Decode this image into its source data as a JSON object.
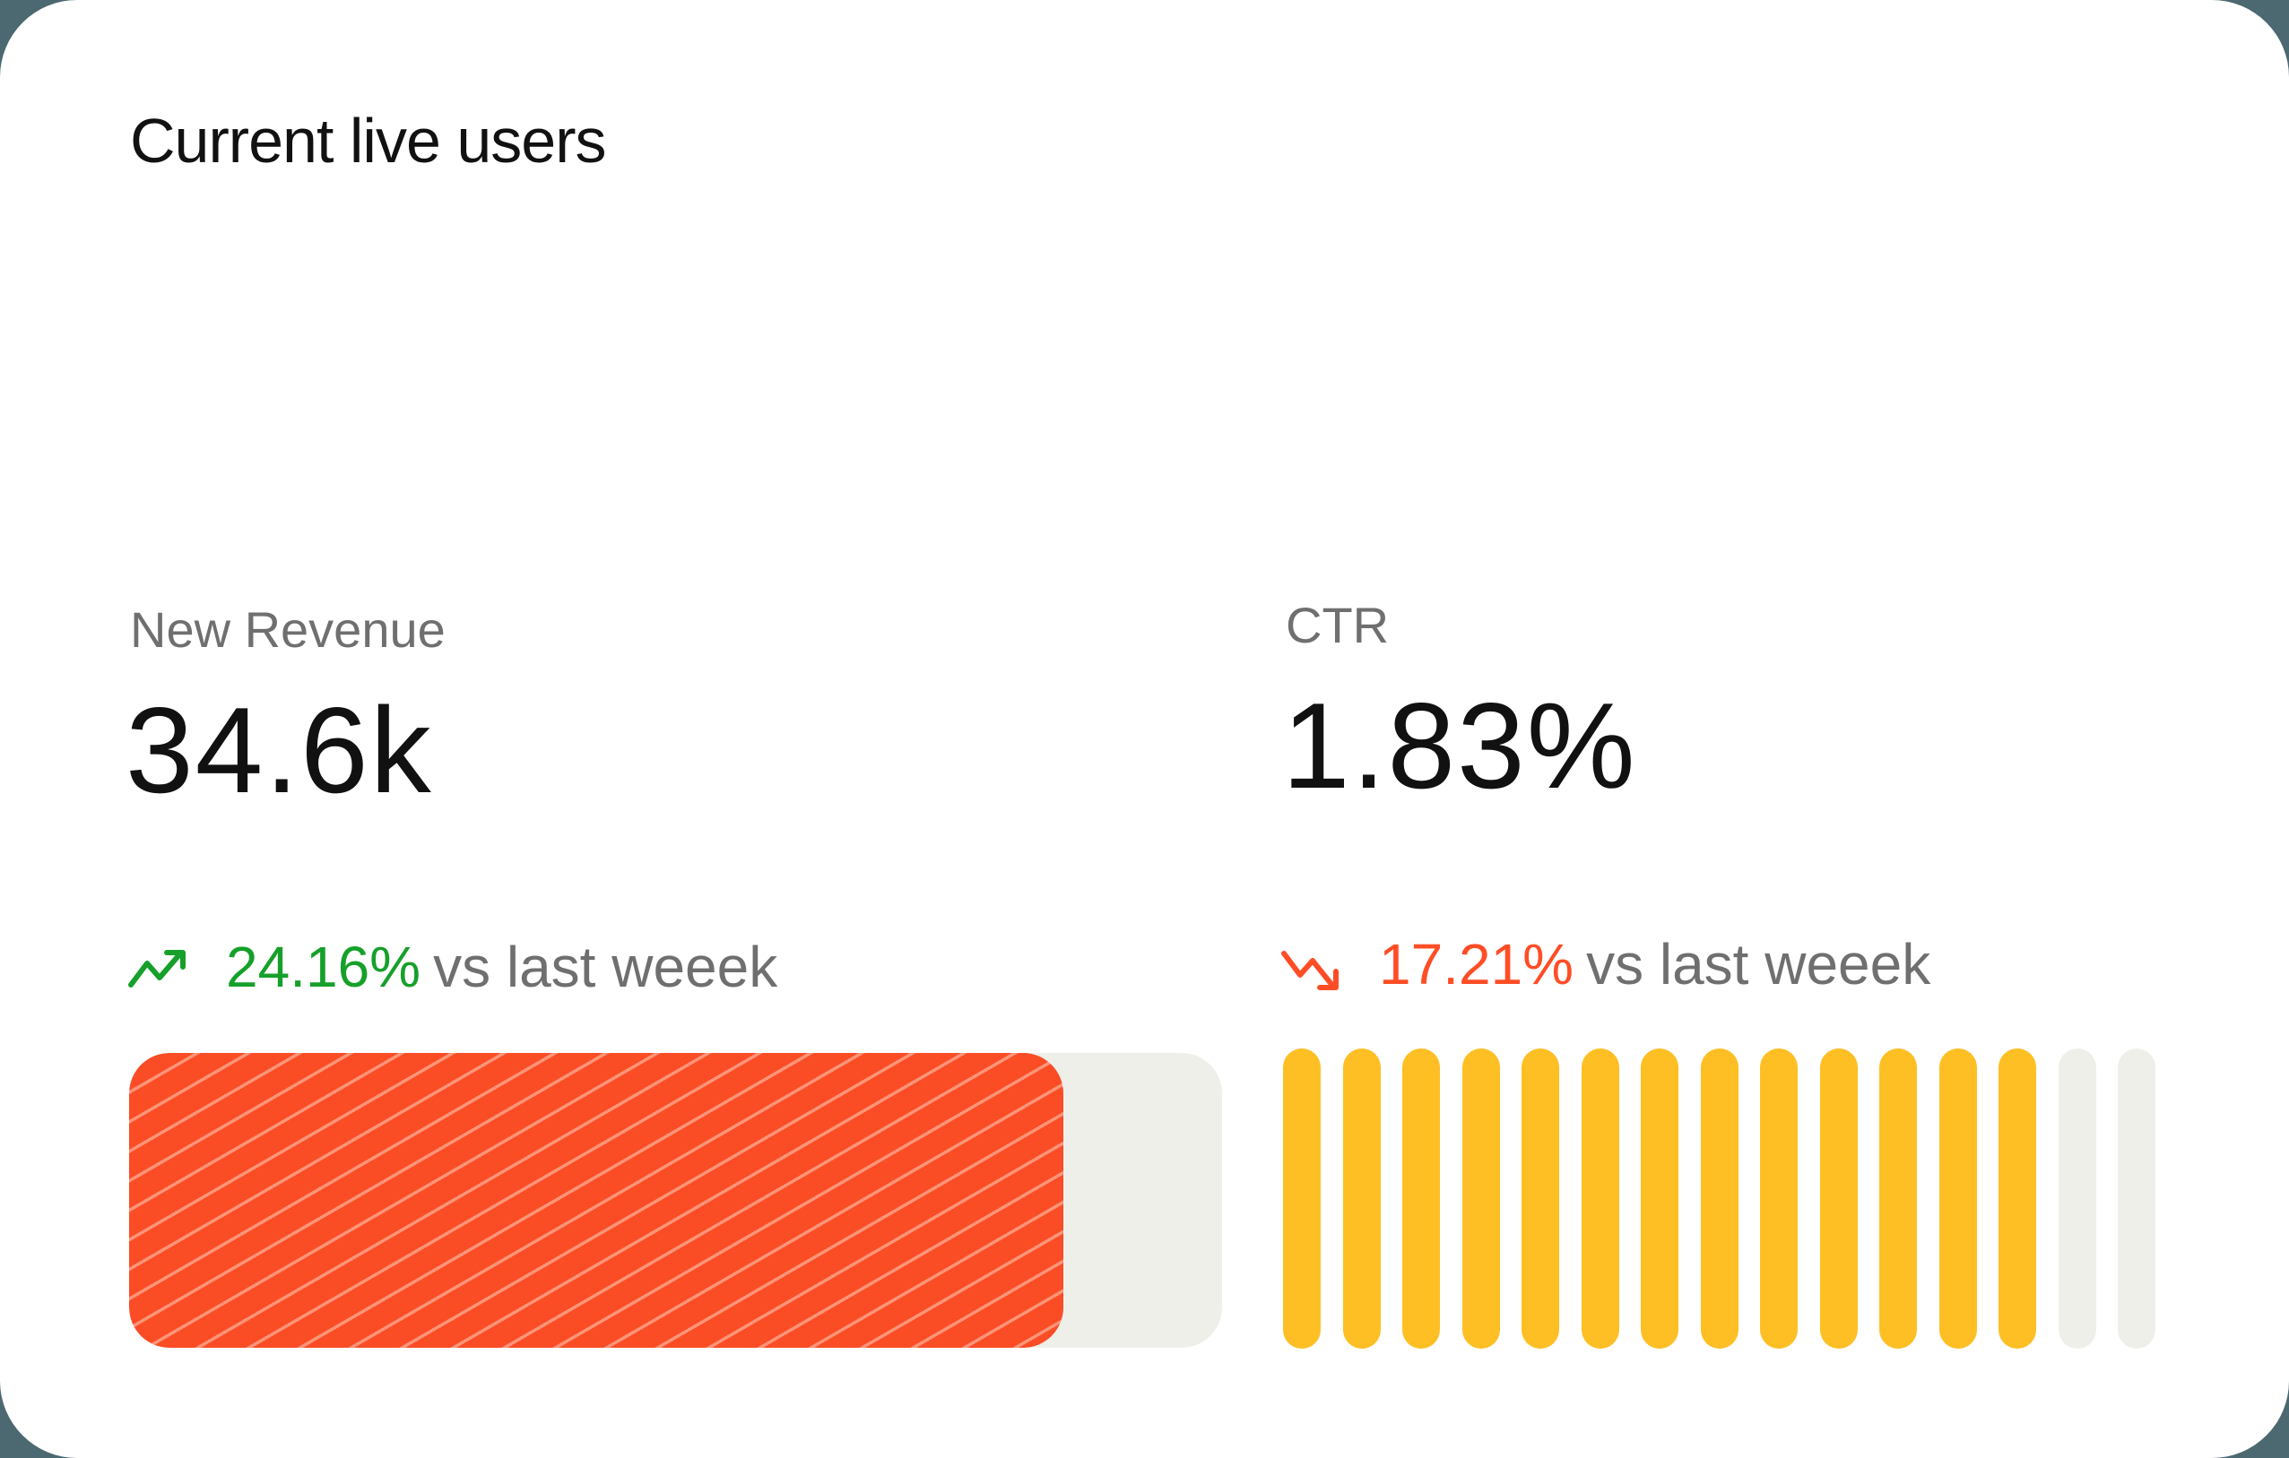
{
  "card": {
    "title": "Current live users",
    "background_color": "#4c6870"
  },
  "colors": {
    "positive": "#16a02a",
    "negative": "#ff4d26",
    "progress_fill": "#fa4d26",
    "progress_track": "#efefea",
    "pill_active": "#fdbf24",
    "pill_inactive": "#efefea",
    "label": "#6f6f6f",
    "value": "#111111"
  },
  "metrics": [
    {
      "label": "New Revenue",
      "value": "34.6k",
      "change": {
        "direction": "up",
        "icon": "trending-up-icon",
        "percent": "24.16%",
        "suffix": "vs last weeek"
      },
      "progress": {
        "type": "striped-bar",
        "fill_percent": 85.5
      }
    },
    {
      "label": "CTR",
      "value": "1.83%",
      "change": {
        "direction": "down",
        "icon": "trending-down-icon",
        "percent": "17.21%",
        "suffix": "vs last weeek"
      },
      "progress": {
        "type": "segmented-pills",
        "total_segments": 15,
        "active_segments": 13
      }
    }
  ]
}
